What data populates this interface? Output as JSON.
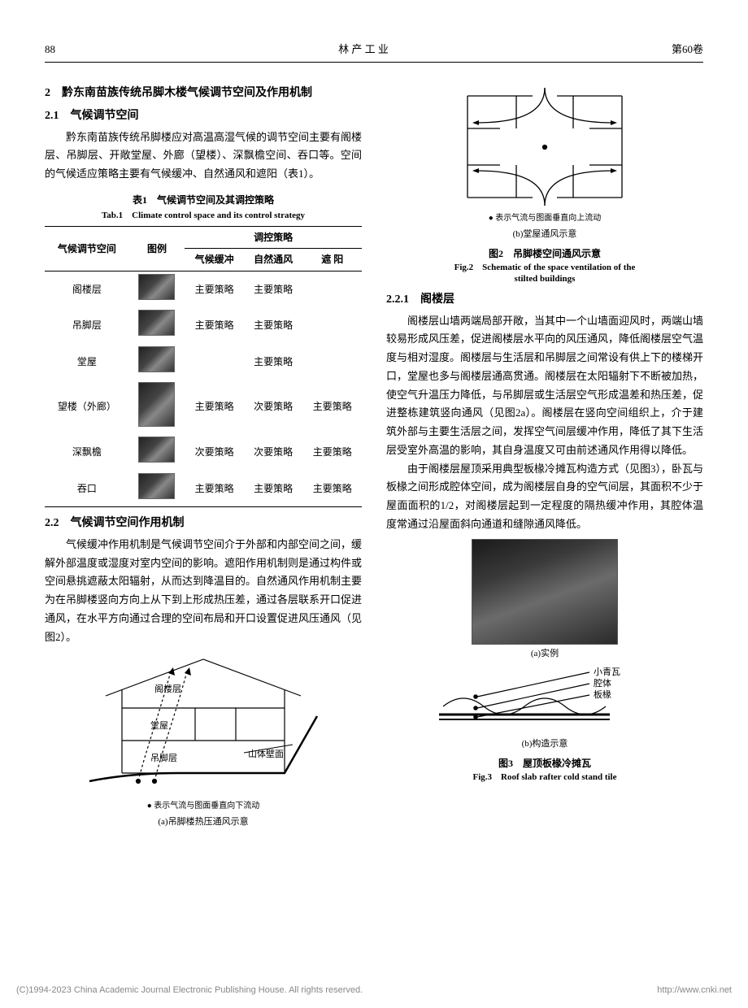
{
  "header": {
    "page_no": "88",
    "journal": "林 产 工 业",
    "volume": "第60卷"
  },
  "left": {
    "h2": "2　黔东南苗族传统吊脚木楼气候调节空间及作用机制",
    "h21": "2.1　气候调节空间",
    "p1": "黔东南苗族传统吊脚楼应对高温高湿气候的调节空间主要有阁楼层、吊脚层、开敞堂屋、外廊（望楼）、深飘檐空间、吞口等。空间的气候适应策略主要有气候缓冲、自然通风和遮阳（表1）。",
    "table1": {
      "cap_cn": "表1　气候调节空间及其调控策略",
      "cap_en": "Tab.1　Climate control space and its control strategy",
      "head_space": "气候调节空间",
      "head_img": "图例",
      "head_strategy": "调控策略",
      "sub_headers": [
        "气候缓冲",
        "自然通风",
        "遮 阳"
      ],
      "rows": [
        {
          "space": "阁楼层",
          "tall": false,
          "s": [
            "主要策略",
            "主要策略",
            ""
          ]
        },
        {
          "space": "吊脚层",
          "tall": false,
          "s": [
            "主要策略",
            "主要策略",
            ""
          ]
        },
        {
          "space": "堂屋",
          "tall": false,
          "s": [
            "",
            "主要策略",
            ""
          ]
        },
        {
          "space": "望楼（外廊）",
          "tall": true,
          "s": [
            "主要策略",
            "次要策略",
            "主要策略"
          ]
        },
        {
          "space": "深飘檐",
          "tall": false,
          "s": [
            "次要策略",
            "次要策略",
            "主要策略"
          ]
        },
        {
          "space": "吞口",
          "tall": false,
          "s": [
            "主要策略",
            "主要策略",
            "主要策略"
          ]
        }
      ]
    },
    "h22": "2.2　气候调节空间作用机制",
    "p2": "气候缓冲作用机制是气候调节空间介于外部和内部空间之间，缓解外部温度或湿度对室内空间的影响。遮阳作用机制则是通过构件或空间悬挑遮蔽太阳辐射，从而达到降温目的。自然通风作用机制主要为在吊脚楼竖向方向上从下到上形成热压差，通过各层联系开口促进通风，在水平方向通过合理的空间布局和开口设置促进风压通风（见图2）。",
    "fig2a": {
      "labels": {
        "attic": "阁楼层",
        "hall": "堂屋",
        "stilt": "吊脚层",
        "slope": "山体壁面"
      },
      "note": "● 表示气流与图面垂直向下流动",
      "sub": "(a)吊脚楼热压通风示意"
    }
  },
  "right": {
    "fig2b": {
      "note": "● 表示气流与图面垂直向上流动",
      "sub": "(b)堂屋通风示意",
      "cap_cn": "图2　吊脚楼空间通风示意",
      "cap_en1": "Fig.2　Schematic of the space ventilation of the",
      "cap_en2": "stilted buildings"
    },
    "h221": "2.2.1　阁楼层",
    "p3": "阁楼层山墙两端局部开敞，当其中一个山墙面迎风时，两端山墙较易形成风压差，促进阁楼层水平向的风压通风，降低阁楼层空气温度与相对湿度。阁楼层与生活层和吊脚层之间常设有供上下的楼梯开口，堂屋也多与阁楼层通高贯通。阁楼层在太阳辐射下不断被加热，使空气升温压力降低，与吊脚层或生活层空气形成温差和热压差，促进整栋建筑竖向通风（见图2a）。阁楼层在竖向空间组织上，介于建筑外部与主要生活层之间，发挥空气间层缓冲作用，降低了其下生活层受室外高温的影响，其自身温度又可由前述通风作用得以降低。",
    "p4": "由于阁楼层屋顶采用典型板椽冷摊瓦构造方式（见图3），卧瓦与板椽之间形成腔体空间，成为阁楼层自身的空气间层，其面积不少于屋面面积的1/2，对阁楼层起到一定程度的隔热缓冲作用，其腔体温度常通过沿屋面斜向通道和缝隙通风降低。",
    "fig3": {
      "sub_a": "(a)实例",
      "labels": {
        "tile": "小青瓦",
        "cavity": "腔体",
        "rafter": "板椽"
      },
      "sub_b": "(b)构造示意",
      "cap_cn": "图3　屋顶板椽冷摊瓦",
      "cap_en": "Fig.3　Roof slab rafter cold stand tile"
    }
  },
  "footer": {
    "left": "(C)1994-2023 China Academic Journal Electronic Publishing House. All rights reserved.",
    "right": "http://www.cnki.net"
  },
  "colors": {
    "text": "#000000",
    "line": "#000000",
    "footer": "#888888"
  }
}
